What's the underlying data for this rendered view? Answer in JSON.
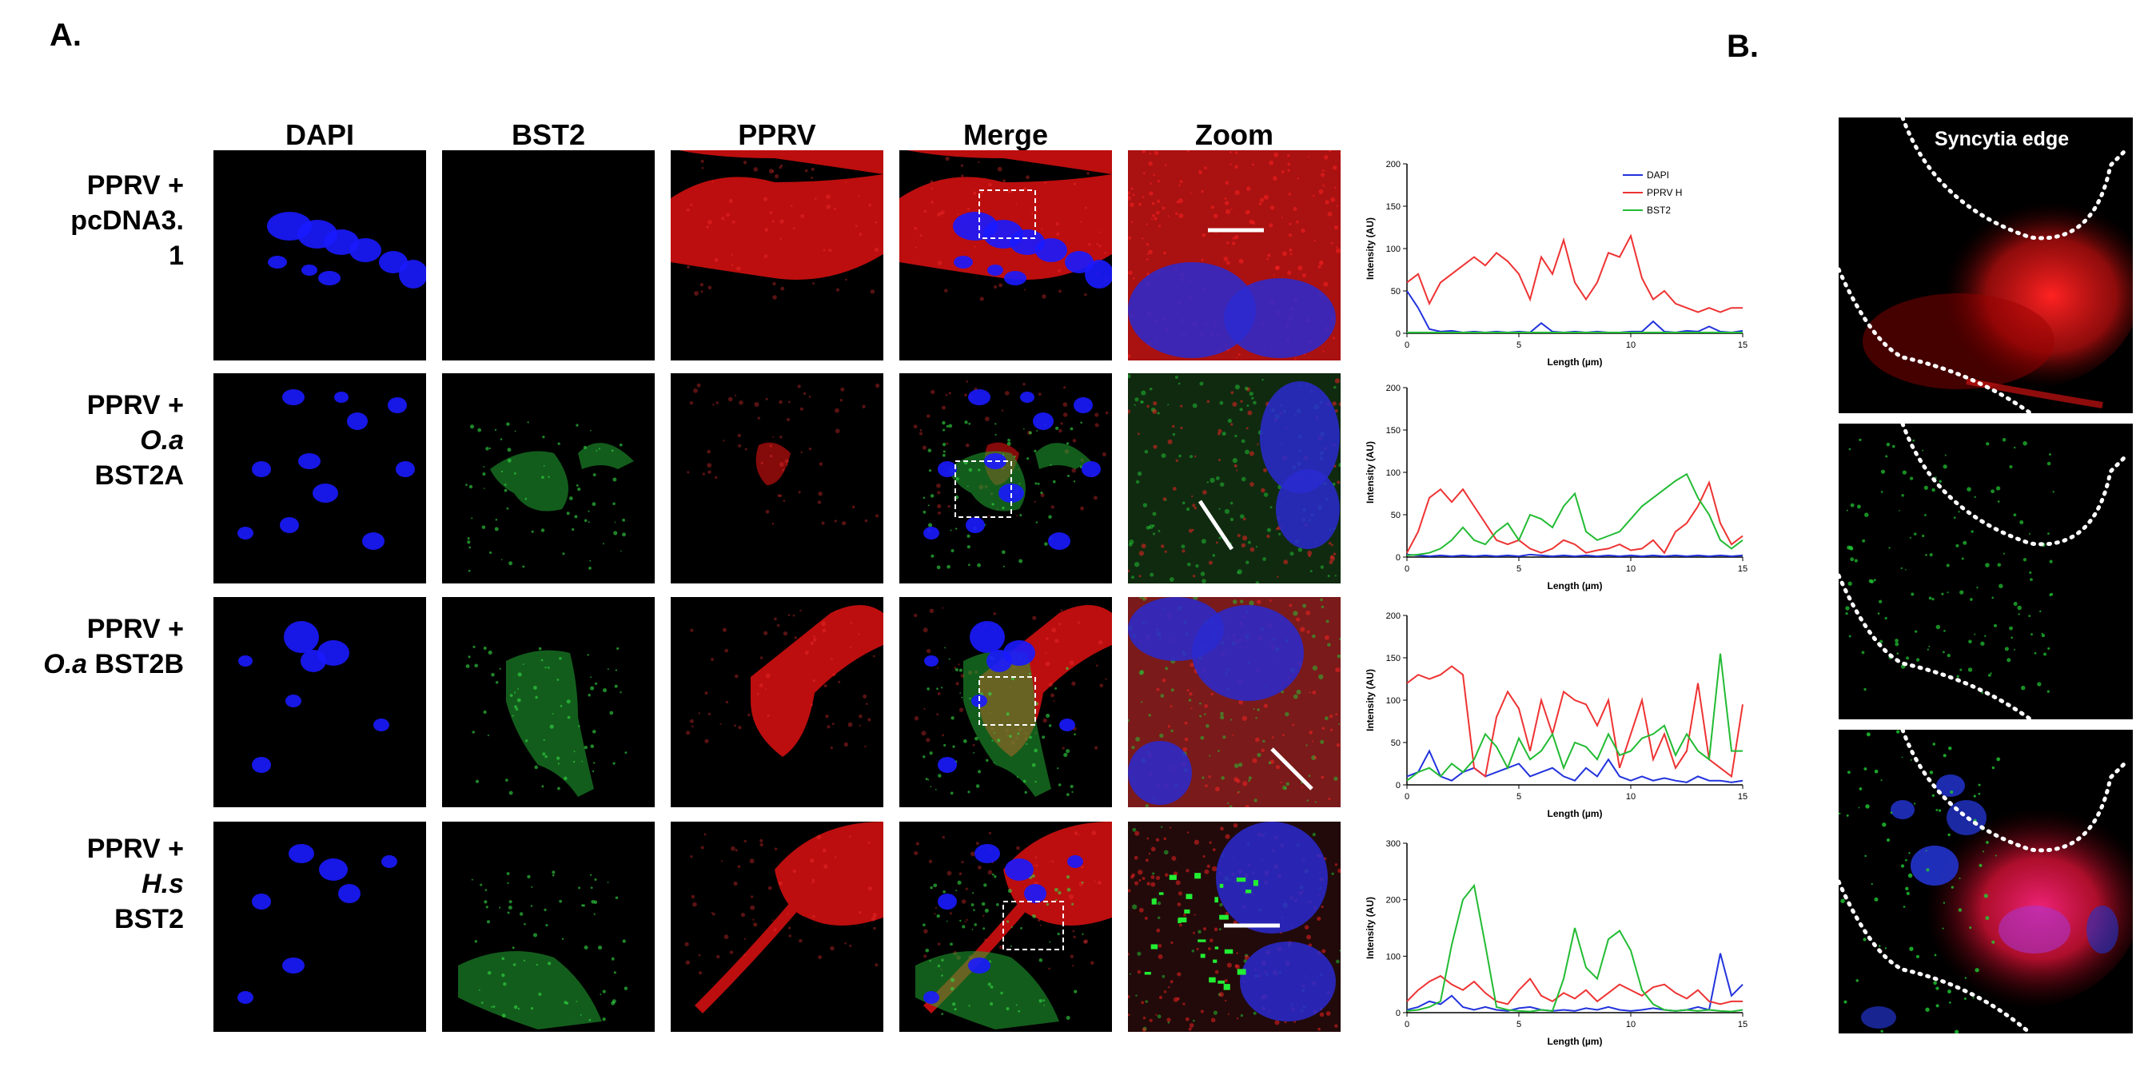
{
  "panel_labels": {
    "a": "A.",
    "b": "B."
  },
  "columns": [
    "DAPI",
    "BST2",
    "PPRV",
    "Merge",
    "Zoom"
  ],
  "rows": [
    {
      "line1": "PPRV +",
      "line2": "pcDNA3.",
      "line3": "1",
      "italic": ""
    },
    {
      "line1": "PPRV +",
      "italic": "O.a",
      "line3": "BST2A"
    },
    {
      "line1": "PPRV +",
      "italic": "O.a",
      "line3": "BST2B"
    },
    {
      "line1": "PPRV +",
      "italic": "H.s",
      "line3": "BST2"
    }
  ],
  "panel_b": {
    "title": "Syncytia edge"
  },
  "colors": {
    "DAPI": "#2233dd",
    "PPRV H": "#ee3333",
    "BST2": "#22bb33"
  },
  "chart_data": [
    {
      "type": "line",
      "xlabel": "Length (µm)",
      "ylabel": "Intensity (AU)",
      "xlim": [
        0,
        15
      ],
      "ylim": [
        0,
        200
      ],
      "xticks": [
        0,
        5,
        10,
        15
      ],
      "yticks": [
        0,
        50,
        100,
        150,
        200
      ],
      "legend": [
        "DAPI",
        "PPRV H",
        "BST2"
      ],
      "x": [
        0,
        0.5,
        1,
        1.5,
        2,
        2.5,
        3,
        3.5,
        4,
        4.5,
        5,
        5.5,
        6,
        6.5,
        7,
        7.5,
        8,
        8.5,
        9,
        9.5,
        10,
        10.5,
        11,
        11.5,
        12,
        12.5,
        13,
        13.5,
        14,
        14.5,
        15
      ],
      "series": [
        {
          "name": "DAPI",
          "values": [
            50,
            30,
            5,
            2,
            3,
            1,
            2,
            1,
            2,
            1,
            2,
            1,
            12,
            2,
            1,
            2,
            1,
            2,
            1,
            1,
            2,
            2,
            14,
            2,
            1,
            3,
            2,
            8,
            2,
            1,
            3
          ]
        },
        {
          "name": "PPRV H",
          "values": [
            60,
            70,
            35,
            60,
            70,
            80,
            90,
            80,
            95,
            85,
            70,
            40,
            90,
            70,
            110,
            60,
            40,
            60,
            95,
            90,
            115,
            65,
            40,
            50,
            35,
            30,
            25,
            30,
            25,
            30,
            30
          ]
        },
        {
          "name": "BST2",
          "values": [
            1,
            1,
            1,
            1,
            1,
            1,
            1,
            1,
            1,
            1,
            1,
            1,
            1,
            1,
            1,
            1,
            1,
            1,
            1,
            1,
            1,
            1,
            1,
            1,
            1,
            1,
            1,
            1,
            1,
            1,
            1
          ]
        }
      ]
    },
    {
      "type": "line",
      "xlabel": "Length (µm)",
      "ylabel": "Intensity (AU)",
      "xlim": [
        0,
        15
      ],
      "ylim": [
        0,
        200
      ],
      "xticks": [
        0,
        5,
        10,
        15
      ],
      "yticks": [
        0,
        50,
        100,
        150,
        200
      ],
      "x": [
        0,
        0.5,
        1,
        1.5,
        2,
        2.5,
        3,
        3.5,
        4,
        4.5,
        5,
        5.5,
        6,
        6.5,
        7,
        7.5,
        8,
        8.5,
        9,
        9.5,
        10,
        10.5,
        11,
        11.5,
        12,
        12.5,
        13,
        13.5,
        14,
        14.5,
        15
      ],
      "series": [
        {
          "name": "DAPI",
          "values": [
            3,
            2,
            1,
            2,
            1,
            2,
            1,
            2,
            1,
            2,
            1,
            3,
            2,
            1,
            2,
            1,
            2,
            1,
            2,
            1,
            2,
            1,
            2,
            1,
            2,
            1,
            2,
            1,
            2,
            1,
            2
          ]
        },
        {
          "name": "PPRV H",
          "values": [
            5,
            30,
            70,
            80,
            65,
            80,
            60,
            40,
            20,
            15,
            20,
            10,
            5,
            10,
            20,
            15,
            5,
            8,
            10,
            15,
            8,
            10,
            20,
            5,
            30,
            40,
            60,
            88,
            40,
            15,
            25
          ]
        },
        {
          "name": "BST2",
          "values": [
            2,
            3,
            5,
            10,
            20,
            35,
            20,
            15,
            30,
            40,
            20,
            50,
            45,
            35,
            60,
            75,
            30,
            20,
            25,
            30,
            45,
            60,
            70,
            80,
            90,
            98,
            70,
            50,
            20,
            10,
            20
          ]
        }
      ]
    },
    {
      "type": "line",
      "xlabel": "Length (µm)",
      "ylabel": "Intensity (AU)",
      "xlim": [
        0,
        15
      ],
      "ylim": [
        0,
        200
      ],
      "xticks": [
        0,
        5,
        10,
        15
      ],
      "yticks": [
        0,
        50,
        100,
        150,
        200
      ],
      "x": [
        0,
        0.5,
        1,
        1.5,
        2,
        2.5,
        3,
        3.5,
        4,
        4.5,
        5,
        5.5,
        6,
        6.5,
        7,
        7.5,
        8,
        8.5,
        9,
        9.5,
        10,
        10.5,
        11,
        11.5,
        12,
        12.5,
        13,
        13.5,
        14,
        14.5,
        15
      ],
      "series": [
        {
          "name": "DAPI",
          "values": [
            10,
            15,
            40,
            10,
            5,
            15,
            20,
            10,
            15,
            20,
            25,
            10,
            15,
            20,
            10,
            5,
            20,
            10,
            30,
            10,
            5,
            10,
            5,
            8,
            5,
            3,
            10,
            5,
            5,
            3,
            5
          ]
        },
        {
          "name": "PPRV H",
          "values": [
            120,
            130,
            125,
            130,
            140,
            130,
            20,
            10,
            80,
            110,
            90,
            40,
            100,
            60,
            110,
            100,
            95,
            70,
            100,
            20,
            60,
            100,
            30,
            60,
            20,
            40,
            120,
            30,
            20,
            10,
            95
          ]
        },
        {
          "name": "BST2",
          "values": [
            5,
            15,
            20,
            10,
            25,
            15,
            30,
            60,
            45,
            20,
            55,
            30,
            40,
            60,
            20,
            50,
            45,
            30,
            60,
            35,
            40,
            55,
            60,
            70,
            35,
            60,
            40,
            30,
            155,
            40,
            40
          ]
        }
      ]
    },
    {
      "type": "line",
      "xlabel": "Length (µm)",
      "ylabel": "Intensity (AU)",
      "xlim": [
        0,
        15
      ],
      "ylim": [
        0,
        300
      ],
      "xticks": [
        0,
        5,
        10,
        15
      ],
      "yticks": [
        0,
        100,
        200,
        300
      ],
      "x": [
        0,
        0.5,
        1,
        1.5,
        2,
        2.5,
        3,
        3.5,
        4,
        4.5,
        5,
        5.5,
        6,
        6.5,
        7,
        7.5,
        8,
        8.5,
        9,
        9.5,
        10,
        10.5,
        11,
        11.5,
        12,
        12.5,
        13,
        13.5,
        14,
        14.5,
        15
      ],
      "series": [
        {
          "name": "DAPI",
          "values": [
            5,
            10,
            20,
            15,
            30,
            10,
            5,
            10,
            5,
            3,
            8,
            10,
            5,
            3,
            5,
            3,
            8,
            5,
            10,
            5,
            3,
            5,
            8,
            5,
            3,
            5,
            10,
            5,
            105,
            30,
            50
          ]
        },
        {
          "name": "PPRV H",
          "values": [
            20,
            40,
            55,
            65,
            50,
            40,
            55,
            35,
            20,
            15,
            40,
            60,
            30,
            20,
            35,
            25,
            40,
            20,
            35,
            50,
            40,
            30,
            45,
            50,
            35,
            25,
            40,
            20,
            15,
            20,
            20
          ]
        },
        {
          "name": "BST2",
          "values": [
            3,
            5,
            10,
            20,
            120,
            200,
            225,
            120,
            10,
            5,
            3,
            2,
            5,
            3,
            60,
            150,
            80,
            60,
            130,
            145,
            110,
            40,
            15,
            5,
            3,
            5,
            3,
            5,
            3,
            2,
            5
          ]
        }
      ]
    }
  ]
}
